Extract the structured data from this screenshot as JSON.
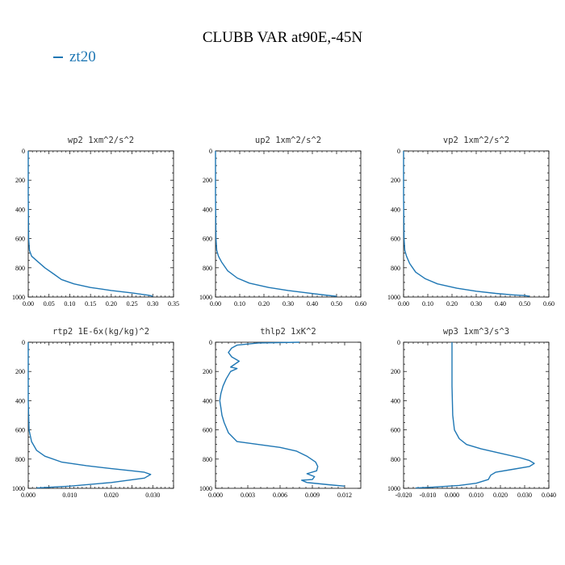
{
  "title": "CLUBB VAR at90E,-45N",
  "legend": {
    "label": "zt20",
    "color": "#1f77b4"
  },
  "chart_data": [
    {
      "type": "line",
      "title": "wp2   1xm^2/s^2",
      "xlim": [
        0,
        0.35
      ],
      "ylim": [
        0,
        1000
      ],
      "xticks": [
        0,
        0.05,
        0.1,
        0.15,
        0.2,
        0.25,
        0.3,
        0.35
      ],
      "xtick_labels": [
        "0.00",
        "0.05",
        "0.10",
        "0.15",
        "0.20",
        "0.25",
        "0.30",
        "0.35"
      ],
      "yticks": [
        0,
        200,
        400,
        600,
        800,
        1000
      ],
      "ytick_labels": [
        "0",
        "200",
        "400",
        "600",
        "800",
        "1000"
      ],
      "series": [
        {
          "name": "zt20",
          "x": [
            0,
            0,
            0.001,
            0.003,
            0.008,
            0.02,
            0.04,
            0.06,
            0.08,
            0.11,
            0.15,
            0.2,
            0.25,
            0.29,
            0.3
          ],
          "y": [
            0,
            300,
            600,
            680,
            720,
            750,
            800,
            840,
            880,
            910,
            935,
            955,
            972,
            988,
            995
          ]
        }
      ]
    },
    {
      "type": "line",
      "title": "up2   1xm^2/s^2",
      "xlim": [
        0,
        0.6
      ],
      "ylim": [
        0,
        1000
      ],
      "xticks": [
        0,
        0.1,
        0.2,
        0.3,
        0.4,
        0.5,
        0.6
      ],
      "xtick_labels": [
        "0.00",
        "0.10",
        "0.20",
        "0.30",
        "0.40",
        "0.50",
        "0.60"
      ],
      "yticks": [
        0,
        200,
        400,
        600,
        800,
        1000
      ],
      "ytick_labels": [
        "0",
        "200",
        "400",
        "600",
        "800",
        "1000"
      ],
      "series": [
        {
          "name": "zt20",
          "x": [
            0,
            0,
            0.002,
            0.005,
            0.012,
            0.025,
            0.05,
            0.09,
            0.14,
            0.22,
            0.3,
            0.38,
            0.45,
            0.5
          ],
          "y": [
            0,
            300,
            600,
            680,
            720,
            760,
            820,
            870,
            905,
            935,
            955,
            972,
            986,
            995
          ]
        }
      ]
    },
    {
      "type": "line",
      "title": "vp2   1xm^2/s^2",
      "xlim": [
        0,
        0.6
      ],
      "ylim": [
        0,
        1000
      ],
      "xticks": [
        0,
        0.1,
        0.2,
        0.3,
        0.4,
        0.5,
        0.6
      ],
      "xtick_labels": [
        "0.00",
        "0.10",
        "0.20",
        "0.30",
        "0.40",
        "0.50",
        "0.60"
      ],
      "yticks": [
        0,
        200,
        400,
        600,
        800,
        1000
      ],
      "ytick_labels": [
        "0",
        "200",
        "400",
        "600",
        "800",
        "1000"
      ],
      "series": [
        {
          "name": "zt20",
          "x": [
            0,
            0,
            0.002,
            0.005,
            0.012,
            0.025,
            0.05,
            0.09,
            0.14,
            0.22,
            0.3,
            0.38,
            0.45,
            0.5,
            0.52
          ],
          "y": [
            0,
            300,
            600,
            680,
            720,
            770,
            830,
            875,
            910,
            940,
            960,
            975,
            985,
            990,
            995
          ]
        }
      ]
    },
    {
      "type": "line",
      "title": "rtp2   1E-6x(kg/kg)^2",
      "xlim": [
        0,
        0.035
      ],
      "ylim": [
        0,
        1000
      ],
      "xticks": [
        0,
        0.005,
        0.01,
        0.015,
        0.02,
        0.025,
        0.03,
        0.035
      ],
      "xtick_labels": [
        "0.000",
        "",
        "0.010",
        "",
        "0.020",
        "",
        "0.030",
        ""
      ],
      "yticks": [
        0,
        200,
        400,
        600,
        800,
        1000
      ],
      "ytick_labels": [
        "0",
        "200",
        "400",
        "600",
        "800",
        "1000"
      ],
      "series": [
        {
          "name": "zt20",
          "x": [
            0,
            0,
            0.0002,
            0.0008,
            0.002,
            0.004,
            0.008,
            0.014,
            0.02,
            0.025,
            0.028,
            0.0295,
            0.028,
            0.02,
            0.01,
            0.002
          ],
          "y": [
            0,
            400,
            600,
            680,
            740,
            780,
            820,
            845,
            865,
            880,
            890,
            905,
            930,
            960,
            985,
            998
          ]
        }
      ]
    },
    {
      "type": "line",
      "title": "thlp2   1xK^2",
      "xlim": [
        0,
        0.0135
      ],
      "ylim": [
        0,
        1000
      ],
      "xticks": [
        0,
        0.003,
        0.006,
        0.009,
        0.012
      ],
      "xtick_labels": [
        "0.000",
        "0.003",
        "0.006",
        "0.009",
        "0.012"
      ],
      "yticks": [
        0,
        200,
        400,
        600,
        800,
        1000
      ],
      "ytick_labels": [
        "0",
        "200",
        "400",
        "600",
        "800",
        "1000"
      ],
      "series": [
        {
          "name": "zt20",
          "x": [
            0.0078,
            0.004,
            0.002,
            0.0015,
            0.0012,
            0.0015,
            0.0022,
            0.0016,
            0.0014,
            0.002,
            0.0014,
            0.001,
            0.0007,
            0.0005,
            0.0004,
            0.0005,
            0.0006,
            0.0008,
            0.0012,
            0.002,
            0.004,
            0.006,
            0.0075,
            0.0085,
            0.0093,
            0.0095,
            0.0094,
            0.0085,
            0.0092,
            0.009,
            0.008,
            0.0085,
            0.0105,
            0.012
          ],
          "y": [
            0,
            5,
            20,
            40,
            70,
            100,
            130,
            160,
            170,
            180,
            200,
            250,
            300,
            350,
            400,
            450,
            500,
            550,
            620,
            680,
            700,
            720,
            745,
            780,
            820,
            850,
            880,
            900,
            920,
            940,
            945,
            960,
            975,
            985
          ]
        }
      ]
    },
    {
      "type": "line",
      "title": "wp3   1xm^3/s^3",
      "xlim": [
        -0.02,
        0.04
      ],
      "ylim": [
        0,
        1000
      ],
      "xticks": [
        -0.02,
        -0.01,
        0,
        0.01,
        0.02,
        0.03,
        0.04
      ],
      "xtick_labels": [
        "-0.020",
        "-0.010",
        "0.000",
        "0.010",
        "0.020",
        "0.030",
        "0.040"
      ],
      "yticks": [
        0,
        200,
        400,
        600,
        800,
        1000
      ],
      "ytick_labels": [
        "0",
        "200",
        "400",
        "600",
        "800",
        "1000"
      ],
      "series": [
        {
          "name": "zt20",
          "x": [
            0,
            0,
            0.0003,
            0.001,
            0.003,
            0.006,
            0.012,
            0.02,
            0.028,
            0.032,
            0.034,
            0.032,
            0.025,
            0.018,
            0.016,
            0.015,
            0.01,
            0.003,
            -0.008,
            -0.015
          ],
          "y": [
            0,
            300,
            500,
            600,
            660,
            700,
            730,
            760,
            790,
            810,
            830,
            850,
            870,
            890,
            910,
            940,
            965,
            980,
            992,
            998
          ]
        }
      ]
    }
  ]
}
